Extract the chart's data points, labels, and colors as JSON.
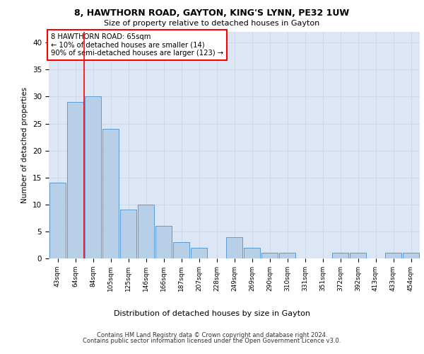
{
  "title1": "8, HAWTHORN ROAD, GAYTON, KING'S LYNN, PE32 1UW",
  "title2": "Size of property relative to detached houses in Gayton",
  "xlabel": "Distribution of detached houses by size in Gayton",
  "ylabel": "Number of detached properties",
  "categories": [
    "43sqm",
    "64sqm",
    "84sqm",
    "105sqm",
    "125sqm",
    "146sqm",
    "166sqm",
    "187sqm",
    "207sqm",
    "228sqm",
    "249sqm",
    "269sqm",
    "290sqm",
    "310sqm",
    "331sqm",
    "351sqm",
    "372sqm",
    "392sqm",
    "413sqm",
    "433sqm",
    "454sqm"
  ],
  "values": [
    14,
    29,
    30,
    24,
    9,
    10,
    6,
    3,
    2,
    0,
    4,
    2,
    1,
    1,
    0,
    0,
    1,
    1,
    0,
    1,
    1
  ],
  "bar_color": "#b8cfe8",
  "bar_edge_color": "#5b9bd5",
  "grid_color": "#d0d8e8",
  "background_color": "#dce6f5",
  "annotation_line1": "8 HAWTHORN ROAD: 65sqm",
  "annotation_line2": "← 10% of detached houses are smaller (14)",
  "annotation_line3": "90% of semi-detached houses are larger (123) →",
  "annotation_box_color": "white",
  "annotation_box_edge_color": "red",
  "redline_x": 1.5,
  "ylim": [
    0,
    42
  ],
  "yticks": [
    0,
    5,
    10,
    15,
    20,
    25,
    30,
    35,
    40
  ],
  "footer1": "Contains HM Land Registry data © Crown copyright and database right 2024.",
  "footer2": "Contains public sector information licensed under the Open Government Licence v3.0."
}
